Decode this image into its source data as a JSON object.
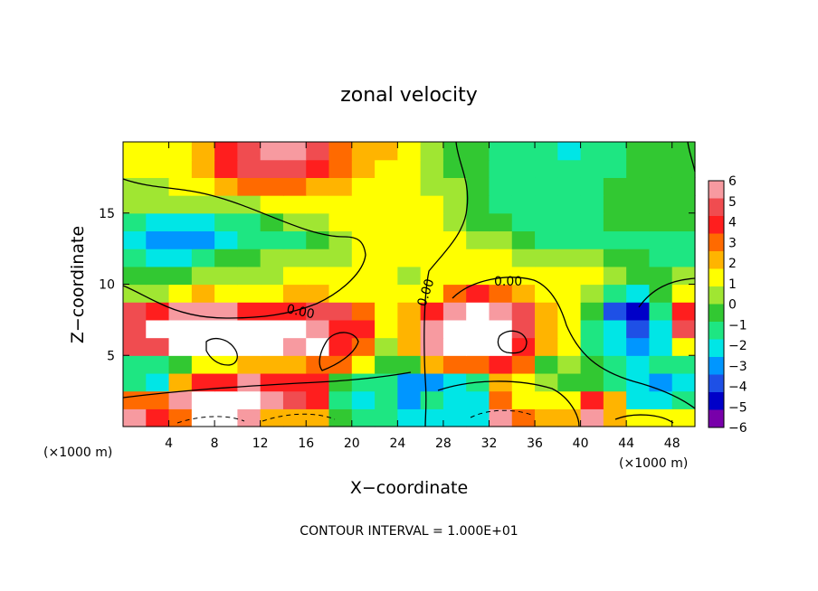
{
  "chart_data": {
    "type": "heatmap",
    "title": "zonal velocity",
    "xlabel": "X−coordinate",
    "ylabel": "Z−coordinate",
    "x_unit_left": "(×1000 m)",
    "x_unit_right": "(×1000 m)",
    "xlim": [
      0,
      50
    ],
    "ylim": [
      0,
      20
    ],
    "x_ticks": [
      4,
      8,
      12,
      16,
      20,
      24,
      28,
      32,
      36,
      40,
      44,
      48
    ],
    "y_ticks": [
      5,
      10,
      15
    ],
    "contour_label": "0.00",
    "footer": "CONTOUR INTERVAL = 1.000E+01",
    "colorbar": {
      "levels": [
        6,
        5,
        4,
        3,
        2,
        1,
        0,
        -1,
        -2,
        -3,
        -4,
        -5,
        -6
      ],
      "labels": [
        "6",
        "5",
        "4",
        "3",
        "2",
        "1",
        "0",
        "−1",
        "−2",
        "−3",
        "−4",
        "−5",
        "−6"
      ],
      "colors": [
        "#f79aa0",
        "#f04c50",
        "#ff1e1e",
        "#ff6a00",
        "#ffb400",
        "#ffff00",
        "#a0e632",
        "#32c832",
        "#1ee682",
        "#00e6e6",
        "#0096ff",
        "#1e50e6",
        "#0000c8",
        "#7800aa"
      ]
    },
    "field": [
      [
        6,
        4,
        3,
        7,
        7,
        6,
        2,
        2,
        2,
        -1,
        -2,
        -2,
        -3,
        -3,
        -3,
        -3,
        6,
        3,
        2,
        2,
        6,
        2,
        1,
        1,
        1
      ],
      [
        3,
        3,
        6,
        7,
        7,
        7,
        6,
        5,
        4,
        -2,
        -3,
        -2,
        -4,
        -2,
        -3,
        -3,
        3,
        1,
        1,
        1,
        4,
        2,
        -3,
        -3,
        -2
      ],
      [
        -2,
        -3,
        2,
        4,
        4,
        6,
        4,
        4,
        4,
        -1,
        -2,
        -2,
        -4,
        -4,
        -3,
        -2,
        2,
        1,
        0,
        -1,
        -1,
        -2,
        -3,
        -4,
        -3
      ],
      [
        -2,
        -2,
        -1,
        1,
        1,
        2,
        2,
        2,
        3,
        3,
        1,
        -1,
        -1,
        2,
        3,
        3,
        4,
        3,
        -1,
        0,
        -1,
        -2,
        -3,
        -2,
        -2
      ],
      [
        5,
        5,
        7,
        7,
        7,
        7,
        7,
        6,
        7,
        4,
        3,
        0,
        2,
        6,
        7,
        7,
        7,
        4,
        2,
        1,
        -2,
        -3,
        -4,
        -3,
        1
      ],
      [
        5,
        7,
        7,
        7,
        7,
        7,
        7,
        7,
        6,
        4,
        4,
        1,
        2,
        6,
        7,
        7,
        7,
        5,
        2,
        1,
        -2,
        -3,
        -5,
        -3,
        5
      ],
      [
        5,
        4,
        6,
        6,
        6,
        4,
        4,
        4,
        5,
        5,
        3,
        1,
        2,
        4,
        6,
        7,
        6,
        5,
        2,
        1,
        -1,
        -5,
        -6,
        -2,
        4
      ],
      [
        0,
        0,
        1,
        2,
        1,
        1,
        1,
        2,
        2,
        1,
        1,
        1,
        1,
        1,
        3,
        4,
        3,
        2,
        1,
        1,
        0,
        -2,
        -3,
        -1,
        1
      ],
      [
        -1,
        -1,
        -1,
        0,
        0,
        0,
        0,
        1,
        1,
        1,
        1,
        1,
        0,
        1,
        1,
        1,
        1,
        1,
        1,
        1,
        1,
        0,
        -1,
        -1,
        0
      ],
      [
        -2,
        -3,
        -3,
        -2,
        -1,
        -1,
        0,
        0,
        0,
        0,
        1,
        1,
        1,
        1,
        1,
        1,
        1,
        0,
        0,
        0,
        0,
        -1,
        -1,
        -2,
        -2
      ],
      [
        -3,
        -4,
        -4,
        -4,
        -3,
        -2,
        -2,
        -2,
        -1,
        0,
        1,
        1,
        1,
        1,
        1,
        0,
        0,
        -1,
        -2,
        -2,
        -2,
        -2,
        -2,
        -2,
        -2
      ],
      [
        -2,
        -3,
        -3,
        -3,
        -2,
        -2,
        -1,
        0,
        0,
        1,
        1,
        1,
        1,
        1,
        0,
        -1,
        -1,
        -2,
        -2,
        -2,
        -2,
        -1,
        -1,
        -1,
        -1
      ],
      [
        0,
        0,
        0,
        0,
        0,
        0,
        1,
        1,
        1,
        1,
        1,
        1,
        1,
        1,
        0,
        -1,
        -2,
        -2,
        -2,
        -2,
        -2,
        -1,
        -1,
        -1,
        -1
      ],
      [
        0,
        0,
        1,
        1,
        2,
        3,
        3,
        3,
        2,
        2,
        1,
        1,
        1,
        0,
        0,
        -1,
        -2,
        -2,
        -2,
        -2,
        -2,
        -1,
        -1,
        -1,
        -1
      ],
      [
        1,
        1,
        1,
        2,
        4,
        5,
        5,
        5,
        4,
        3,
        2,
        1,
        1,
        0,
        -1,
        -1,
        -2,
        -2,
        -2,
        -2,
        -2,
        -2,
        -1,
        -1,
        -1
      ],
      [
        1,
        1,
        1,
        2,
        4,
        5,
        6,
        6,
        5,
        3,
        2,
        2,
        1,
        0,
        -1,
        -1,
        -2,
        -2,
        -2,
        -3,
        -2,
        -2,
        -1,
        -1,
        -1
      ]
    ]
  }
}
